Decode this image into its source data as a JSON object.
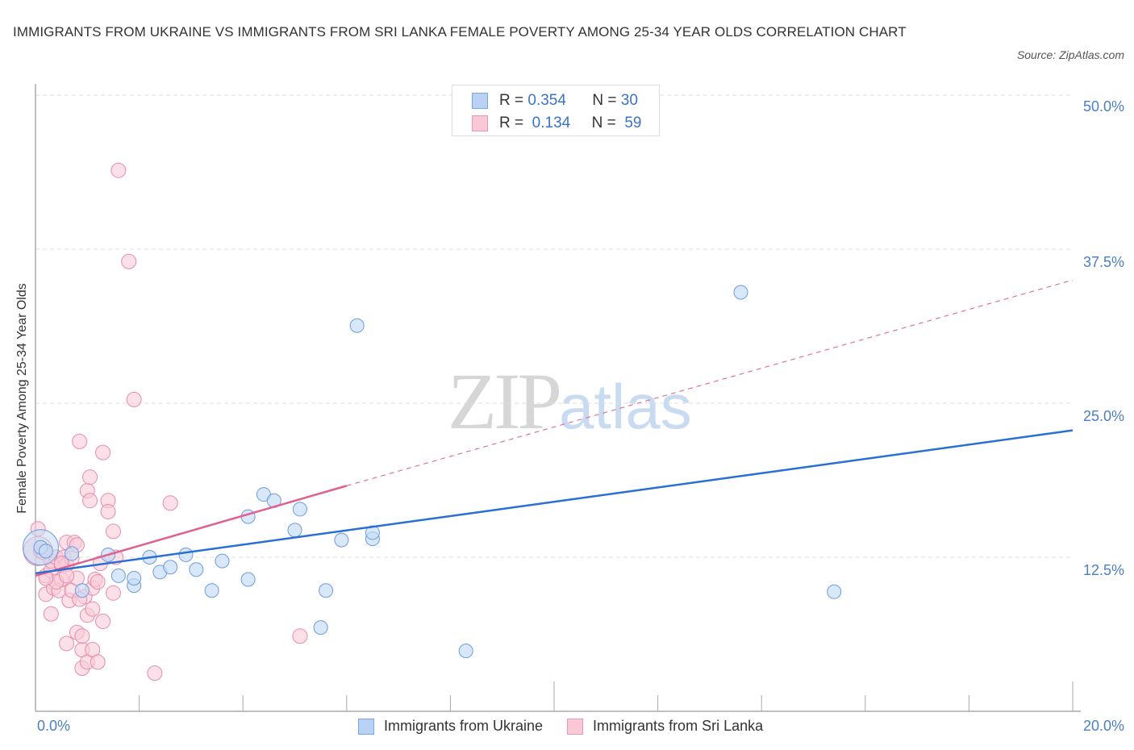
{
  "header": {
    "title": "IMMIGRANTS FROM UKRAINE VS IMMIGRANTS FROM SRI LANKA FEMALE POVERTY AMONG 25-34 YEAR OLDS CORRELATION CHART",
    "source": "Source: ZipAtlas.com"
  },
  "watermark": {
    "zip": "ZIP",
    "atlas": "atlas"
  },
  "axes": {
    "ylabel": "Female Poverty Among 25-34 Year Olds",
    "yticks": [
      "50.0%",
      "37.5%",
      "25.0%",
      "12.5%"
    ],
    "xticks": [
      "0.0%",
      "20.0%"
    ]
  },
  "legend": {
    "rows": [
      {
        "r_label": "R =",
        "r_value": "0.354",
        "n_label": "N =",
        "n_value": "30",
        "color": "#b9d2f3",
        "border": "#7ba7e0"
      },
      {
        "r_label": "R =",
        "r_value": "0.134",
        "n_label": "N =",
        "n_value": "59",
        "color": "#f9c7d6",
        "border": "#ec98b4"
      }
    ],
    "series": [
      "Immigrants from Ukraine",
      "Immigrants from Sri Lanka"
    ]
  },
  "colors": {
    "ukraine_fill": "#c5dbf5",
    "ukraine_stroke": "#6b9be0",
    "ukraine_line": "#2a6fd4",
    "srilanka_fill": "#f9cbd9",
    "srilanka_stroke": "#e88aaa",
    "srilanka_line": "#e0608e",
    "tick_text": "#4a7fc8"
  },
  "chart_data": {
    "type": "scatter",
    "title": "IMMIGRANTS FROM UKRAINE VS IMMIGRANTS FROM SRI LANKA FEMALE POVERTY AMONG 25-34 YEAR OLDS CORRELATION CHART",
    "xlabel": "",
    "ylabel": "Female Poverty Among 25-34 Year Olds",
    "xlim": [
      0,
      20
    ],
    "ylim": [
      0,
      50
    ],
    "yticks": [
      12.5,
      25.0,
      37.5,
      50.0
    ],
    "grid": "horizontal dashed",
    "legend_position": "top-center and bottom",
    "series": [
      {
        "name": "Immigrants from Ukraine",
        "R": 0.354,
        "N": 30,
        "points": [
          [
            0.1,
            13.3
          ],
          [
            0.7,
            12.8
          ],
          [
            0.9,
            9.8
          ],
          [
            1.4,
            12.7
          ],
          [
            1.6,
            11.0
          ],
          [
            1.9,
            10.2
          ],
          [
            1.9,
            10.8
          ],
          [
            2.2,
            12.5
          ],
          [
            2.4,
            11.3
          ],
          [
            2.6,
            11.7
          ],
          [
            2.9,
            12.7
          ],
          [
            3.1,
            11.5
          ],
          [
            3.4,
            9.8
          ],
          [
            3.6,
            12.2
          ],
          [
            4.1,
            15.8
          ],
          [
            4.1,
            10.7
          ],
          [
            4.4,
            17.6
          ],
          [
            4.6,
            17.1
          ],
          [
            5.0,
            14.7
          ],
          [
            5.1,
            16.4
          ],
          [
            5.5,
            6.8
          ],
          [
            5.6,
            9.8
          ],
          [
            5.9,
            13.9
          ],
          [
            6.2,
            31.3
          ],
          [
            6.5,
            14.0
          ],
          [
            6.5,
            14.5
          ],
          [
            8.3,
            4.9
          ],
          [
            13.6,
            34.0
          ],
          [
            15.4,
            9.7
          ],
          [
            0.2,
            13.0
          ]
        ],
        "trend": {
          "x": [
            0,
            20
          ],
          "y": [
            11.2,
            22.8
          ]
        }
      },
      {
        "name": "Immigrants from Sri Lanka",
        "R": 0.134,
        "N": 59,
        "points": [
          [
            0.05,
            14.8
          ],
          [
            0.1,
            13.0
          ],
          [
            0.15,
            12.9
          ],
          [
            0.2,
            11.0
          ],
          [
            0.2,
            9.5
          ],
          [
            0.3,
            11.4
          ],
          [
            0.3,
            12.2
          ],
          [
            0.35,
            10.0
          ],
          [
            0.4,
            12.5
          ],
          [
            0.45,
            9.8
          ],
          [
            0.5,
            11.9
          ],
          [
            0.5,
            10.7
          ],
          [
            0.55,
            12.5
          ],
          [
            0.6,
            13.7
          ],
          [
            0.6,
            11.9
          ],
          [
            0.65,
            9.0
          ],
          [
            0.7,
            12.4
          ],
          [
            0.7,
            9.8
          ],
          [
            0.75,
            13.7
          ],
          [
            0.8,
            10.8
          ],
          [
            0.8,
            13.5
          ],
          [
            0.3,
            7.9
          ],
          [
            0.6,
            5.5
          ],
          [
            0.8,
            6.4
          ],
          [
            0.9,
            5.0
          ],
          [
            0.9,
            6.1
          ],
          [
            0.9,
            3.5
          ],
          [
            1.0,
            4.0
          ],
          [
            1.1,
            5.0
          ],
          [
            1.0,
            7.8
          ],
          [
            1.2,
            4.0
          ],
          [
            1.3,
            7.3
          ],
          [
            0.95,
            9.3
          ],
          [
            0.85,
            9.1
          ],
          [
            1.1,
            8.3
          ],
          [
            1.1,
            10.0
          ],
          [
            1.15,
            10.7
          ],
          [
            1.2,
            10.5
          ],
          [
            1.25,
            12.0
          ],
          [
            1.5,
            9.6
          ],
          [
            1.55,
            12.5
          ],
          [
            0.85,
            21.9
          ],
          [
            1.0,
            17.9
          ],
          [
            1.05,
            17.1
          ],
          [
            1.05,
            19.0
          ],
          [
            1.3,
            21.0
          ],
          [
            1.4,
            17.1
          ],
          [
            1.4,
            16.2
          ],
          [
            1.5,
            14.6
          ],
          [
            2.6,
            16.9
          ],
          [
            1.9,
            25.3
          ],
          [
            1.8,
            36.5
          ],
          [
            1.6,
            43.9
          ],
          [
            2.3,
            3.1
          ],
          [
            5.1,
            6.1
          ],
          [
            0.4,
            10.5
          ],
          [
            0.2,
            10.8
          ],
          [
            0.5,
            12.0
          ],
          [
            0.6,
            11.0
          ]
        ],
        "trend_solid": {
          "x": [
            0,
            6.0
          ],
          "y": [
            11.0,
            18.3
          ]
        },
        "trend_dashed": {
          "x": [
            6.0,
            20
          ],
          "y": [
            18.3,
            35.0
          ]
        }
      }
    ]
  }
}
